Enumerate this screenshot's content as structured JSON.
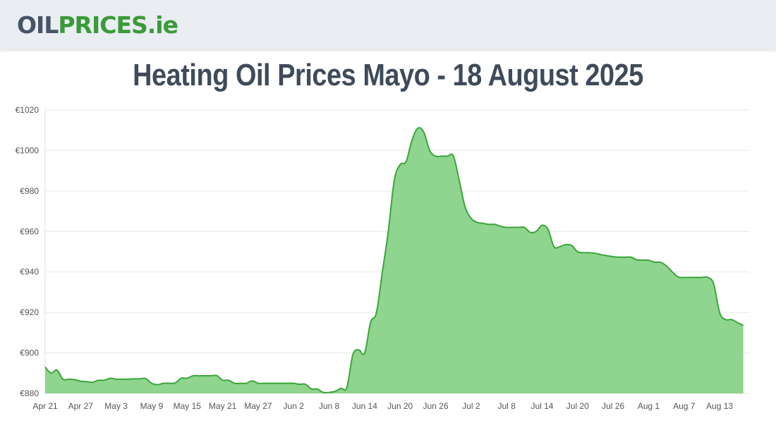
{
  "header": {
    "logo_part1": "OIL",
    "logo_part2": "PRICES",
    "logo_part3": ".ie",
    "logo_name": "oilprices-logo"
  },
  "chart_data": {
    "type": "area",
    "title": "Heating Oil Prices Mayo - 18 August 2025",
    "xlabel": "",
    "ylabel": "",
    "ylim": [
      880,
      1020
    ],
    "y_ticks": [
      "€880",
      "€900",
      "€920",
      "€940",
      "€960",
      "€980",
      "€1000",
      "€1020"
    ],
    "y_tick_values": [
      880,
      900,
      920,
      940,
      960,
      980,
      1000,
      1020
    ],
    "x_tick_labels": [
      "Apr 21",
      "Apr 27",
      "May 3",
      "May 9",
      "May 15",
      "May 21",
      "May 27",
      "Jun 2",
      "Jun 8",
      "Jun 14",
      "Jun 20",
      "Jun 26",
      "Jul 2",
      "Jul 8",
      "Jul 14",
      "Jul 20",
      "Jul 26",
      "Aug 1",
      "Aug 7",
      "Aug 13"
    ],
    "x_start": "Apr 21",
    "x_end": "Aug 18",
    "grid": true,
    "colors": {
      "line": "#3aa63a",
      "fill": "#8fd48f",
      "grid": "#e6e6e6"
    },
    "series": [
      {
        "name": "",
        "points": [
          [
            "Apr 21",
            893
          ],
          [
            "Apr 22",
            890
          ],
          [
            "Apr 23",
            891.5
          ],
          [
            "Apr 24",
            887
          ],
          [
            "Apr 25",
            887
          ],
          [
            "Apr 26",
            886.8
          ],
          [
            "Apr 27",
            886
          ],
          [
            "Apr 28",
            885.8
          ],
          [
            "Apr 29",
            885.5
          ],
          [
            "Apr 30",
            886.5
          ],
          [
            "May 1",
            886.5
          ],
          [
            "May 2",
            887.5
          ],
          [
            "May 3",
            887
          ],
          [
            "May 4",
            887
          ],
          [
            "May 5",
            887
          ],
          [
            "May 6",
            887.2
          ],
          [
            "May 7",
            887.2
          ],
          [
            "May 8",
            887.3
          ],
          [
            "May 9",
            885
          ],
          [
            "May 10",
            884.3
          ],
          [
            "May 11",
            885
          ],
          [
            "May 12",
            885
          ],
          [
            "May 13",
            885.2
          ],
          [
            "May 14",
            887.5
          ],
          [
            "May 15",
            887.5
          ],
          [
            "May 16",
            888.7
          ],
          [
            "May 17",
            888.7
          ],
          [
            "May 18",
            888.7
          ],
          [
            "May 19",
            888.7
          ],
          [
            "May 20",
            888.8
          ],
          [
            "May 21",
            886.5
          ],
          [
            "May 22",
            886.5
          ],
          [
            "May 23",
            885
          ],
          [
            "May 24",
            885
          ],
          [
            "May 25",
            885
          ],
          [
            "May 26",
            886.2
          ],
          [
            "May 27",
            885
          ],
          [
            "May 28",
            885
          ],
          [
            "May 29",
            885
          ],
          [
            "May 30",
            885
          ],
          [
            "May 31",
            885
          ],
          [
            "Jun 1",
            885
          ],
          [
            "Jun 2",
            885
          ],
          [
            "Jun 3",
            884.5
          ],
          [
            "Jun 4",
            884.5
          ],
          [
            "Jun 5",
            882.2
          ],
          [
            "Jun 6",
            882.2
          ],
          [
            "Jun 7",
            880.5
          ],
          [
            "Jun 8",
            880.5
          ],
          [
            "Jun 9",
            881
          ],
          [
            "Jun 10",
            882.5
          ],
          [
            "Jun 11",
            883
          ],
          [
            "Jun 12",
            899
          ],
          [
            "Jun 13",
            901.5
          ],
          [
            "Jun 14",
            900
          ],
          [
            "Jun 15",
            915
          ],
          [
            "Jun 16",
            920
          ],
          [
            "Jun 17",
            940
          ],
          [
            "Jun 18",
            960
          ],
          [
            "Jun 19",
            985
          ],
          [
            "Jun 20",
            993
          ],
          [
            "Jun 21",
            994.5
          ],
          [
            "Jun 22",
            1005
          ],
          [
            "Jun 23",
            1011
          ],
          [
            "Jun 24",
            1009
          ],
          [
            "Jun 25",
            1000
          ],
          [
            "Jun 26",
            997.2
          ],
          [
            "Jun 27",
            997.2
          ],
          [
            "Jun 28",
            997.2
          ],
          [
            "Jun 29",
            997.2
          ],
          [
            "Jun 30",
            985
          ],
          [
            "Jul 1",
            972
          ],
          [
            "Jul 2",
            966.5
          ],
          [
            "Jul 3",
            964.5
          ],
          [
            "Jul 4",
            964
          ],
          [
            "Jul 5",
            963.5
          ],
          [
            "Jul 6",
            963.5
          ],
          [
            "Jul 7",
            962.5
          ],
          [
            "Jul 8",
            962
          ],
          [
            "Jul 9",
            962
          ],
          [
            "Jul 10",
            962
          ],
          [
            "Jul 11",
            962
          ],
          [
            "Jul 12",
            959.5
          ],
          [
            "Jul 13",
            960
          ],
          [
            "Jul 14",
            963
          ],
          [
            "Jul 15",
            961
          ],
          [
            "Jul 16",
            952.5
          ],
          [
            "Jul 17",
            952.5
          ],
          [
            "Jul 18",
            953.5
          ],
          [
            "Jul 19",
            953
          ],
          [
            "Jul 20",
            950
          ],
          [
            "Jul 21",
            949.5
          ],
          [
            "Jul 22",
            949.5
          ],
          [
            "Jul 23",
            949.2
          ],
          [
            "Jul 24",
            948.5
          ],
          [
            "Jul 25",
            948
          ],
          [
            "Jul 26",
            947.5
          ],
          [
            "Jul 27",
            947.3
          ],
          [
            "Jul 28",
            947.3
          ],
          [
            "Jul 29",
            947.3
          ],
          [
            "Jul 30",
            946
          ],
          [
            "Jul 31",
            945.8
          ],
          [
            "Aug 1",
            945.8
          ],
          [
            "Aug 2",
            944.8
          ],
          [
            "Aug 3",
            944.8
          ],
          [
            "Aug 4",
            943
          ],
          [
            "Aug 5",
            940
          ],
          [
            "Aug 6",
            937.5
          ],
          [
            "Aug 7",
            937.3
          ],
          [
            "Aug 8",
            937.3
          ],
          [
            "Aug 9",
            937.3
          ],
          [
            "Aug 10",
            937.3
          ],
          [
            "Aug 11",
            937.3
          ],
          [
            "Aug 12",
            934
          ],
          [
            "Aug 13",
            920
          ],
          [
            "Aug 14",
            916.5
          ],
          [
            "Aug 15",
            916.5
          ],
          [
            "Aug 16",
            915
          ],
          [
            "Aug 17",
            913.5
          ]
        ]
      }
    ]
  }
}
